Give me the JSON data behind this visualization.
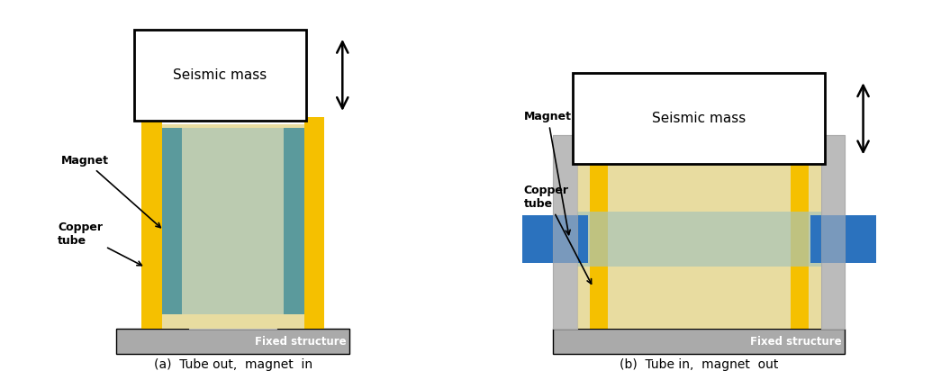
{
  "fig_width": 10.35,
  "fig_height": 4.22,
  "bg_color": "#ffffff",
  "caption_a": "(a)  Tube out,  magnet  in",
  "caption_b": "(b)  Tube in,  magnet  out",
  "label_magnet": "Magnet",
  "label_copper": "Copper\ntube",
  "label_seismic": "Seismic mass",
  "label_fixed": "Fixed structure",
  "colors": {
    "yellow": "#F5C000",
    "tan": "#E8DCA0",
    "teal": "#5B9A9C",
    "teal_light": "#A8C4B8",
    "gray_dark": "#AAAAAA",
    "gray_mid": "#BBBBBB",
    "gray_light": "#D8D8D8",
    "blue": "#2B72BE",
    "black": "#000000",
    "white": "#ffffff"
  }
}
